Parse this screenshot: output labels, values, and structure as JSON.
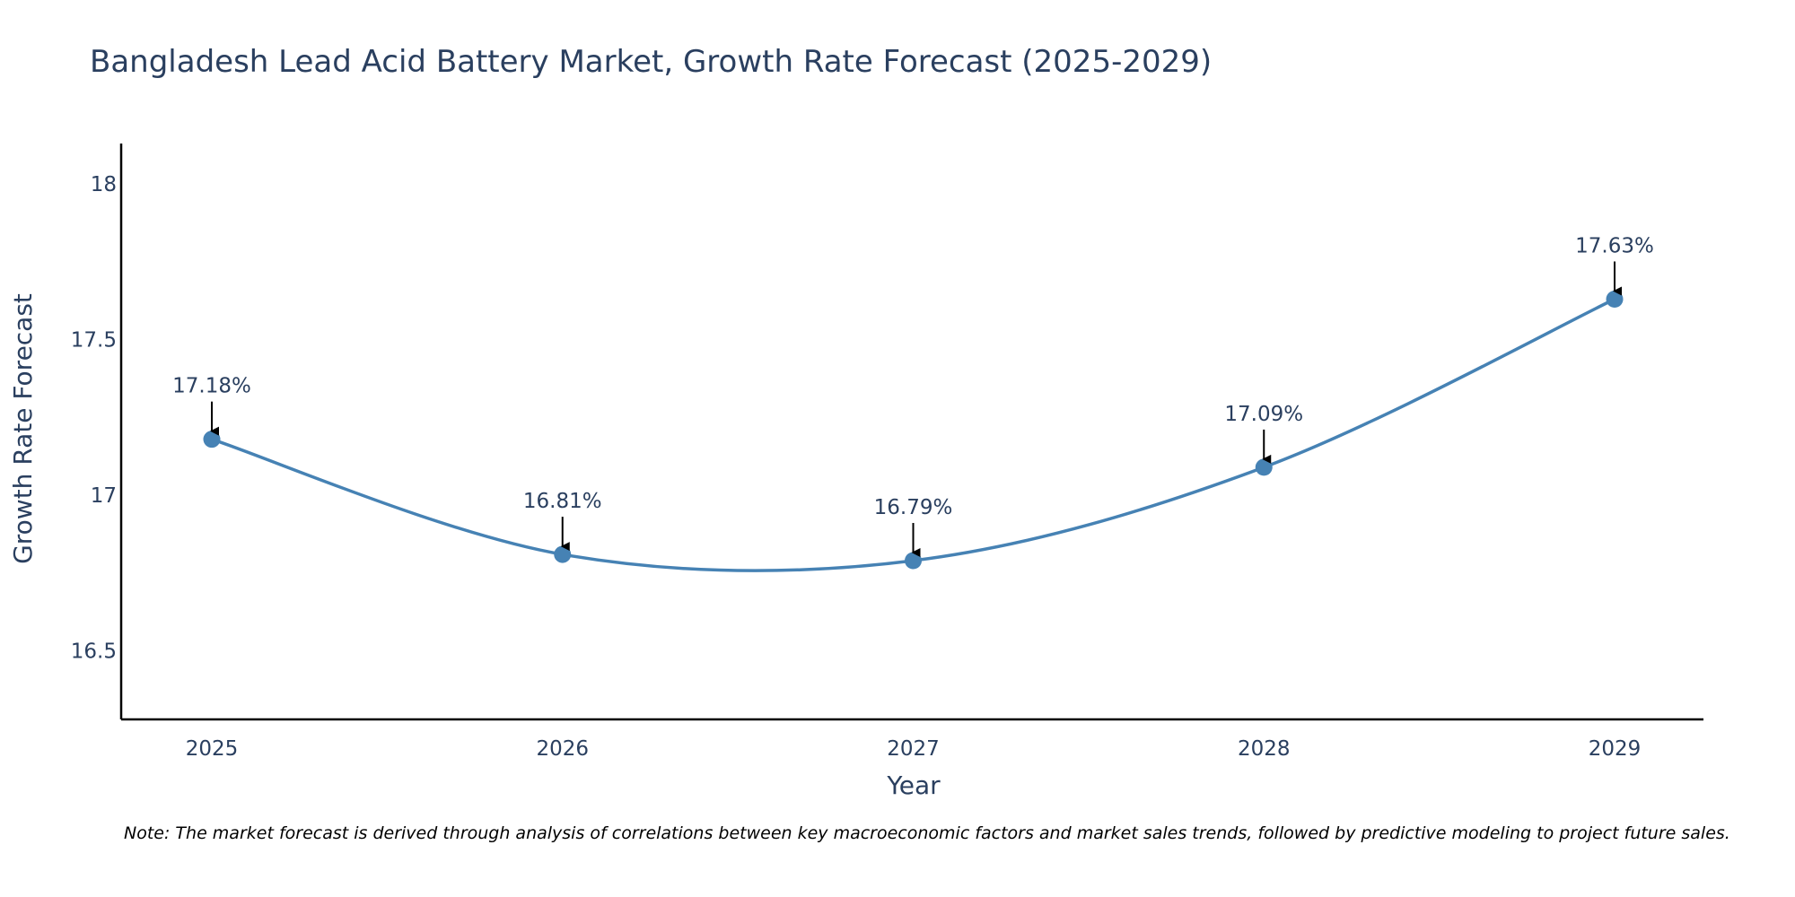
{
  "chart_data": {
    "type": "line",
    "title": "Bangladesh Lead Acid Battery Market, Growth Rate Forecast (2025-2029)",
    "xlabel": "Year",
    "ylabel": "Growth Rate Forecast",
    "categories": [
      "2025",
      "2026",
      "2027",
      "2028",
      "2029"
    ],
    "series": [
      {
        "name": "Growth Rate Forecast",
        "values": [
          17.18,
          16.81,
          16.79,
          17.09,
          17.63
        ],
        "labels": [
          "17.18%",
          "16.81%",
          "16.79%",
          "17.09%",
          "17.63%"
        ]
      }
    ],
    "ylim": [
      16.28,
      18.13
    ],
    "yticks": [
      16.5,
      17,
      17.5,
      18
    ],
    "ytick_labels": [
      "16.5",
      "17",
      "17.5",
      "18"
    ],
    "line_shape": "spline",
    "grid": false,
    "legend": "none",
    "colors": {
      "line": "#4682b4",
      "marker": "#4682b4",
      "axis": "#000000",
      "text": "#2a3f5f",
      "arrow": "#000000"
    }
  },
  "note": "Note: The market forecast is derived through analysis of correlations between key macroeconomic factors and market sales trends, followed by predictive modeling to project future sales."
}
